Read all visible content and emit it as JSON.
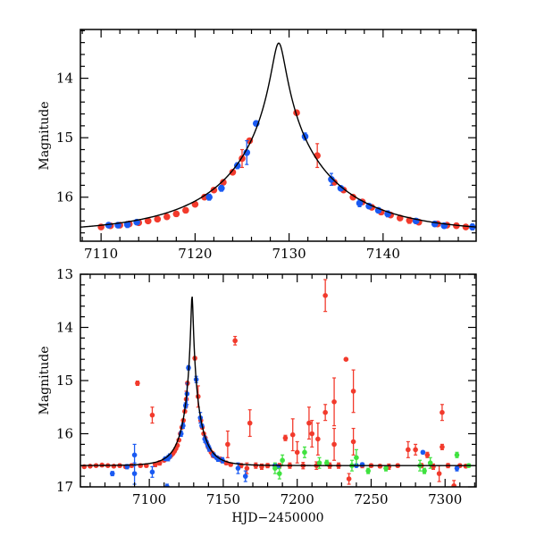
{
  "colors": {
    "red": "#f23a2c",
    "blue": "#1a5af2",
    "green": "#3fe23f",
    "model": "#000000"
  },
  "chart_data": [
    {
      "type": "scatter",
      "panel": "top",
      "title": "",
      "xlabel": "",
      "ylabel": "Magnitude",
      "xlim": [
        7107.8,
        7149.9
      ],
      "ylim": [
        16.74,
        13.18
      ],
      "xticks": [
        7110,
        7120,
        7130,
        7140
      ],
      "xtick_labels": [
        "7110",
        "7120",
        "7130",
        "7140"
      ],
      "yticks": [
        14,
        15,
        16
      ],
      "ytick_labels": [
        "14",
        "15",
        "16"
      ],
      "x_minor_step": 2,
      "y_minor_step": 0.2
    },
    {
      "type": "scatter",
      "panel": "bottom",
      "title": "",
      "xlabel": "HJD−2450000",
      "ylabel": "Magnitude",
      "xlim": [
        7053.4,
        7321
      ],
      "ylim": [
        17,
        13
      ],
      "xticks": [
        7100,
        7150,
        7200,
        7250,
        7300
      ],
      "xtick_labels": [
        "7100",
        "7150",
        "7200",
        "7250",
        "7300"
      ],
      "yticks": [
        13,
        14,
        15,
        16,
        17
      ],
      "ytick_labels": [
        "13",
        "14",
        "15",
        "16",
        "17"
      ],
      "x_minor_step": 10,
      "y_minor_step": 0.2
    }
  ],
  "model": {
    "t0": 7128.9,
    "u0": 0.053,
    "tE": 12.3,
    "baseline_mag": 16.6
  },
  "series": [
    {
      "name": "red",
      "color_key": "red",
      "points": [
        [
          7056,
          16.62,
          0.02
        ],
        [
          7060,
          16.61,
          0.02
        ],
        [
          7064,
          16.6,
          0.02
        ],
        [
          7068,
          16.59,
          0.02
        ],
        [
          7072,
          16.6,
          0.02
        ],
        [
          7076,
          16.61,
          0.02
        ],
        [
          7080,
          16.6,
          0.03
        ],
        [
          7084,
          16.62,
          0.03
        ],
        [
          7088,
          16.6,
          0.03
        ],
        [
          7092,
          15.05,
          0.04
        ],
        [
          7094,
          16.6,
          0.03
        ],
        [
          7098,
          16.6,
          0.03
        ],
        [
          7102,
          15.65,
          0.15
        ],
        [
          7104,
          16.58,
          0.04
        ],
        [
          7107,
          16.55,
          0.04
        ],
        [
          7110,
          16.5,
          0.02
        ],
        [
          7111,
          16.48,
          0.02
        ],
        [
          7112,
          16.47,
          0.03
        ],
        [
          7113,
          16.45,
          0.02
        ],
        [
          7114,
          16.43,
          0.03
        ],
        [
          7115,
          16.4,
          0.02
        ],
        [
          7116,
          16.37,
          0.02
        ],
        [
          7117,
          16.33,
          0.02
        ],
        [
          7118,
          16.28,
          0.02
        ],
        [
          7119,
          16.22,
          0.02
        ],
        [
          7120,
          16.12,
          0.02
        ],
        [
          7121,
          16.0,
          0.02
        ],
        [
          7122,
          15.88,
          0.02
        ],
        [
          7123,
          15.75,
          0.02
        ],
        [
          7124,
          15.58,
          0.02
        ],
        [
          7125,
          15.35,
          0.15
        ],
        [
          7125.8,
          15.05,
          0.03
        ],
        [
          7130.8,
          14.58,
          0.03
        ],
        [
          7133,
          15.3,
          0.2
        ],
        [
          7134.8,
          15.75,
          0.02
        ],
        [
          7135.8,
          15.88,
          0.02
        ],
        [
          7136.8,
          16.0,
          0.02
        ],
        [
          7137.8,
          16.08,
          0.02
        ],
        [
          7138.8,
          16.17,
          0.02
        ],
        [
          7139.8,
          16.25,
          0.02
        ],
        [
          7140.8,
          16.3,
          0.02
        ],
        [
          7141.8,
          16.35,
          0.02
        ],
        [
          7142.8,
          16.39,
          0.05
        ],
        [
          7143.8,
          16.42,
          0.03
        ],
        [
          7145.8,
          16.45,
          0.02
        ],
        [
          7146.8,
          16.47,
          0.03
        ],
        [
          7147.8,
          16.48,
          0.04
        ],
        [
          7148.8,
          16.5,
          0.02
        ],
        [
          7152,
          16.55,
          0.03
        ],
        [
          7153,
          16.2,
          0.25
        ],
        [
          7155,
          16.58,
          0.03
        ],
        [
          7158,
          14.25,
          0.08
        ],
        [
          7162,
          16.6,
          0.04
        ],
        [
          7166,
          16.65,
          0.1
        ],
        [
          7168,
          15.8,
          0.25
        ],
        [
          7172,
          16.6,
          0.05
        ],
        [
          7176,
          16.62,
          0.05
        ],
        [
          7180,
          16.6,
          0.04
        ],
        [
          7188,
          16.6,
          0.04
        ],
        [
          7192,
          16.08,
          0.05
        ],
        [
          7195,
          16.6,
          0.05
        ],
        [
          7197,
          16.02,
          0.3
        ],
        [
          7200,
          16.35,
          0.2
        ],
        [
          7204,
          16.6,
          0.06
        ],
        [
          7208,
          15.8,
          0.3
        ],
        [
          7210,
          16.0,
          0.25
        ],
        [
          7213,
          16.6,
          0.07
        ],
        [
          7214,
          16.1,
          0.3
        ],
        [
          7219,
          13.4,
          0.3
        ],
        [
          7219,
          15.6,
          0.15
        ],
        [
          7222,
          16.6,
          0.05
        ],
        [
          7225,
          15.4,
          0.45
        ],
        [
          7225,
          16.2,
          0.3
        ],
        [
          7228,
          16.6,
          0.05
        ],
        [
          7233,
          14.6,
          0.02
        ],
        [
          7235,
          16.85,
          0.1
        ],
        [
          7238,
          15.2,
          0.4
        ],
        [
          7238,
          16.15,
          0.25
        ],
        [
          7244,
          16.6,
          0.04
        ],
        [
          7250,
          16.6,
          0.03
        ],
        [
          7256,
          16.61,
          0.03
        ],
        [
          7262,
          16.62,
          0.05
        ],
        [
          7268,
          16.6,
          0.03
        ],
        [
          7275,
          16.3,
          0.15
        ],
        [
          7280,
          16.3,
          0.1
        ],
        [
          7284,
          16.6,
          0.04
        ],
        [
          7288,
          16.4,
          0.05
        ],
        [
          7292,
          16.62,
          0.05
        ],
        [
          7296,
          16.75,
          0.15
        ],
        [
          7298,
          15.6,
          0.15
        ],
        [
          7298,
          16.25,
          0.05
        ],
        [
          7302,
          16.6,
          0.04
        ],
        [
          7306,
          16.98,
          0.1
        ],
        [
          7310,
          16.6,
          0.03
        ],
        [
          7314,
          16.61,
          0.03
        ]
      ]
    },
    {
      "name": "blue",
      "color_key": "blue",
      "points": [
        [
          7075,
          16.75,
          0.04
        ],
        [
          7085,
          16.62,
          0.04
        ],
        [
          7090,
          16.4,
          0.2
        ],
        [
          7090,
          16.75,
          0.2
        ],
        [
          7102,
          16.72,
          0.1
        ],
        [
          7112,
          17.0,
          0.05
        ],
        [
          7110.8,
          16.47,
          0.03
        ],
        [
          7111.8,
          16.47,
          0.03
        ],
        [
          7112.8,
          16.46,
          0.05
        ],
        [
          7113.8,
          16.42,
          0.04
        ],
        [
          7121.5,
          16.0,
          0.05
        ],
        [
          7122.8,
          15.85,
          0.05
        ],
        [
          7124.5,
          15.47,
          0.05
        ],
        [
          7125.5,
          15.25,
          0.2
        ],
        [
          7126.5,
          14.76,
          0.04
        ],
        [
          7131.7,
          14.98,
          0.06
        ],
        [
          7134.5,
          15.7,
          0.1
        ],
        [
          7135.5,
          15.85,
          0.03
        ],
        [
          7137.5,
          16.1,
          0.06
        ],
        [
          7138.5,
          16.15,
          0.03
        ],
        [
          7139.5,
          16.22,
          0.03
        ],
        [
          7140.5,
          16.28,
          0.05
        ],
        [
          7143.5,
          16.4,
          0.04
        ],
        [
          7145.5,
          16.45,
          0.03
        ],
        [
          7146.5,
          16.48,
          0.04
        ],
        [
          7149.5,
          16.5,
          0.05
        ],
        [
          7160,
          16.65,
          0.1
        ],
        [
          7165,
          16.8,
          0.1
        ],
        [
          7185,
          16.6,
          0.03
        ],
        [
          7187,
          16.62,
          0.03
        ],
        [
          7240,
          16.6,
          0.03
        ],
        [
          7244,
          16.58,
          0.03
        ],
        [
          7285,
          16.35,
          0.03
        ],
        [
          7308,
          16.65,
          0.05
        ]
      ]
    },
    {
      "name": "green",
      "color_key": "green",
      "points": [
        [
          7185,
          16.65,
          0.1
        ],
        [
          7188,
          16.75,
          0.1
        ],
        [
          7190,
          16.5,
          0.1
        ],
        [
          7205,
          16.35,
          0.1
        ],
        [
          7215,
          16.55,
          0.1
        ],
        [
          7220,
          16.55,
          0.05
        ],
        [
          7237,
          16.6,
          0.1
        ],
        [
          7240,
          16.45,
          0.15
        ],
        [
          7248,
          16.7,
          0.05
        ],
        [
          7260,
          16.65,
          0.05
        ],
        [
          7283,
          16.6,
          0.1
        ],
        [
          7286,
          16.7,
          0.05
        ],
        [
          7290,
          16.55,
          0.1
        ],
        [
          7308,
          16.4,
          0.05
        ],
        [
          7316,
          16.6,
          0.03
        ]
      ]
    }
  ]
}
